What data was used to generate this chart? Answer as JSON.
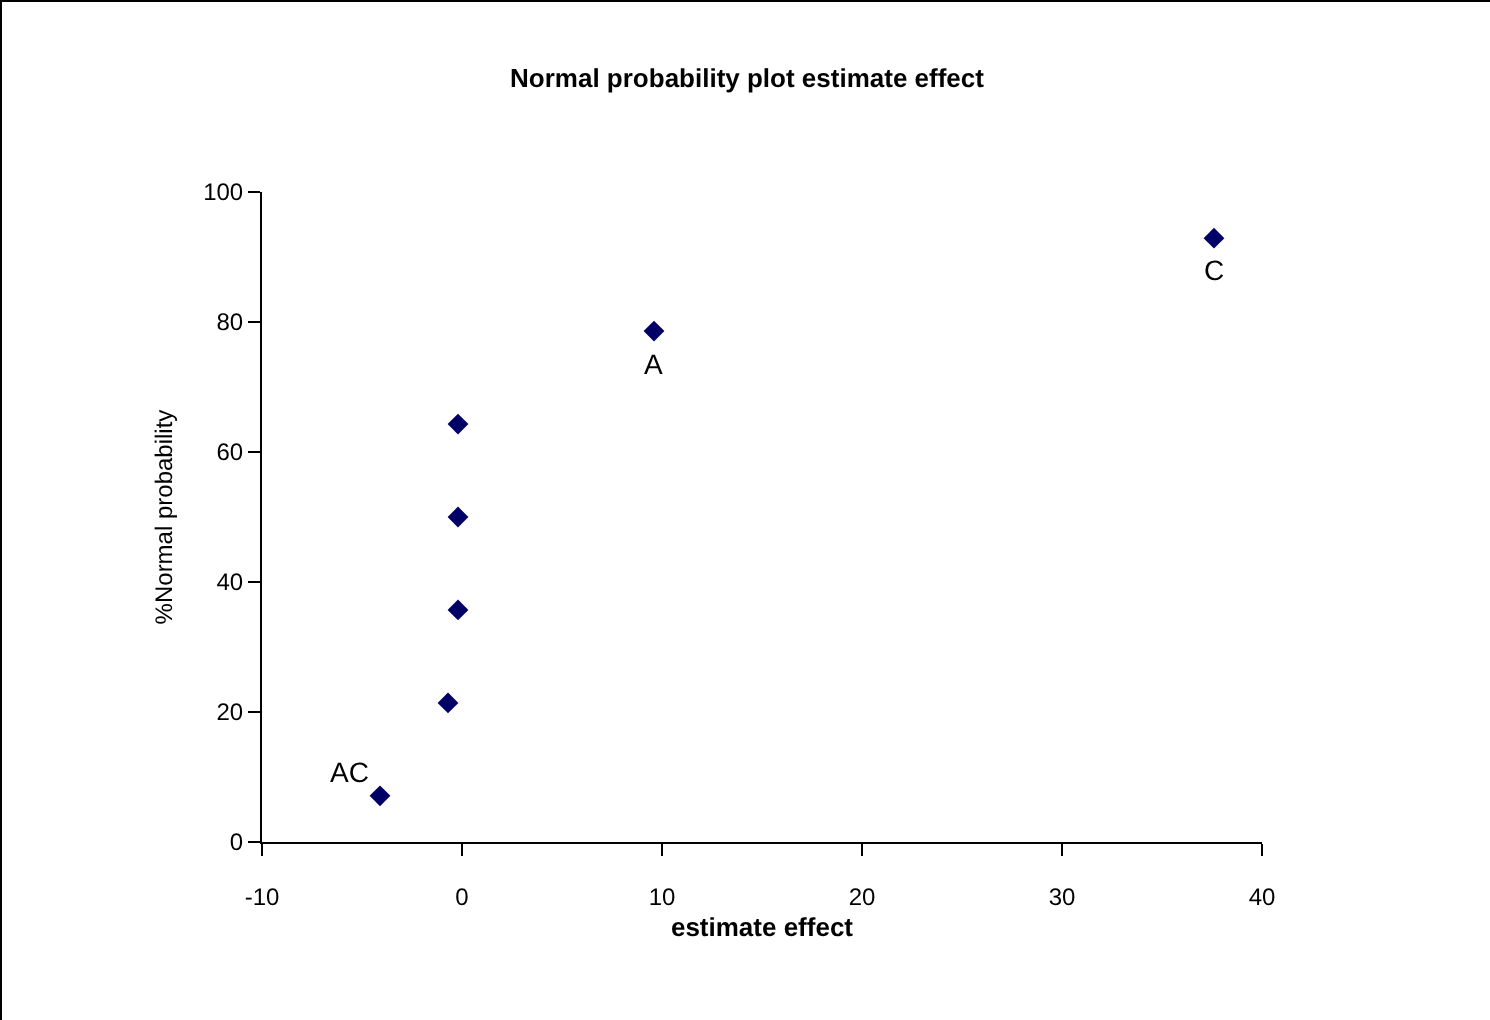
{
  "chart_data": {
    "type": "scatter",
    "title": "Normal probability plot estimate effect",
    "xlabel": "estimate effect",
    "ylabel": "%Normal probability",
    "x": [
      -4.1,
      -0.7,
      -0.2,
      -0.2,
      -0.2,
      9.6,
      37.6
    ],
    "series": [
      {
        "color": "#000066",
        "values": [
          7.1,
          21.4,
          35.7,
          50,
          64.3,
          78.6,
          92.9
        ]
      }
    ],
    "xlim": [
      -10,
      40
    ],
    "xticks": [
      -10,
      0,
      10,
      20,
      30,
      40
    ],
    "ylim": [
      0,
      100
    ],
    "yticks": [
      0,
      20,
      40,
      60,
      80,
      100
    ],
    "grid": false,
    "marker": "diamond",
    "annotations": [
      {
        "text": "AC",
        "x": -4.1,
        "y": 7.1
      },
      {
        "text": "A",
        "x": 9.6,
        "y": 78.6
      },
      {
        "text": "C",
        "x": 37.6,
        "y": 92.9
      }
    ]
  }
}
